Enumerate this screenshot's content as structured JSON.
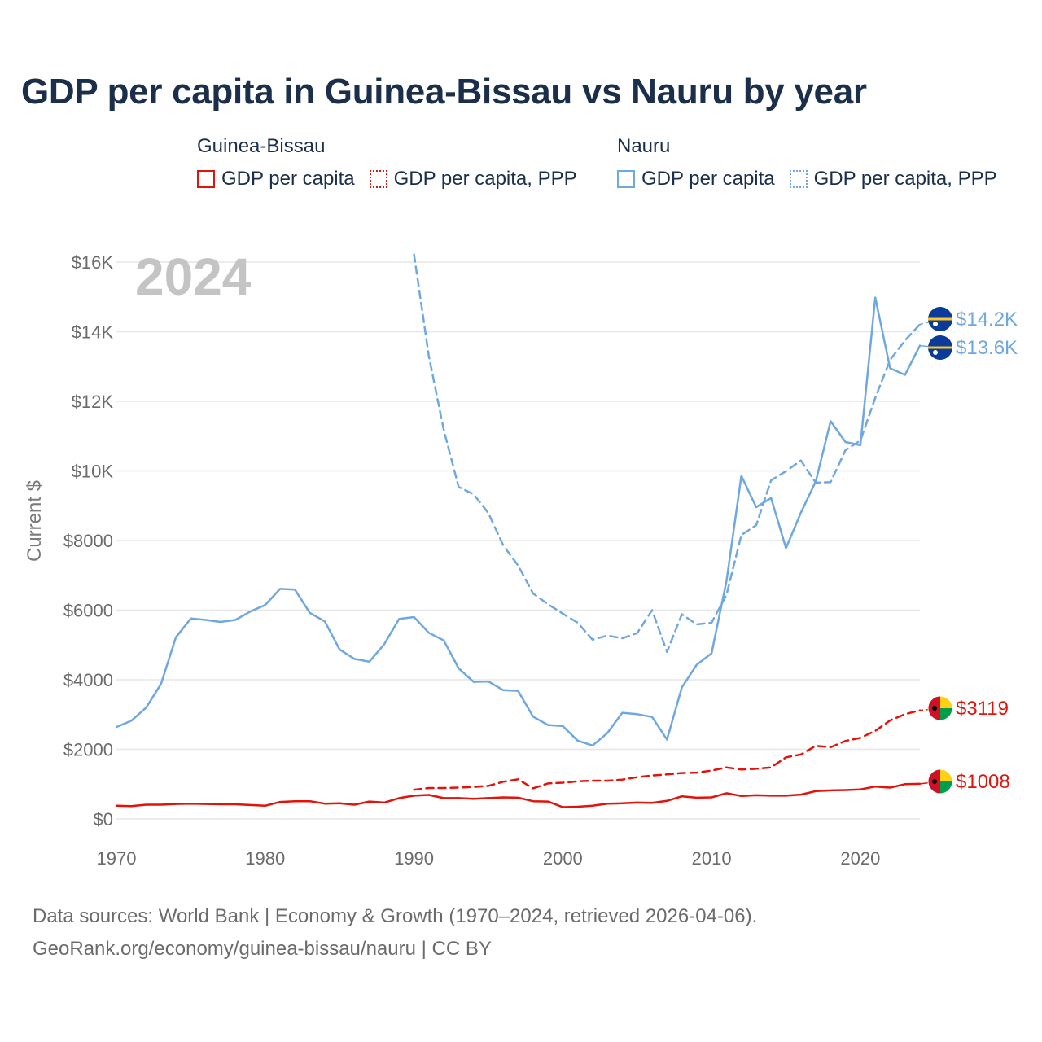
{
  "title": "GDP per capita in Guinea-Bissau vs Nauru by year",
  "legend": {
    "guinea_bissau": {
      "name": "Guinea-Bissau",
      "gdp": "GDP per capita",
      "ppp": "GDP per capita, PPP"
    },
    "nauru": {
      "name": "Nauru",
      "gdp": "GDP per capita",
      "ppp": "GDP per capita, PPP"
    }
  },
  "footer": {
    "line1": "Data sources: World Bank | Economy & Growth (1970–2024, retrieved 2026-04-06).",
    "line2": "GeoRank.org/economy/guinea-bissau/nauru | CC BY"
  },
  "chart_data": {
    "type": "line",
    "title": "GDP per capita in Guinea-Bissau vs Nauru by year",
    "year_label": "2024",
    "ylabel": "Current $",
    "xlabel": "",
    "xlim": [
      1970,
      2024
    ],
    "ylim": [
      0,
      16000
    ],
    "grid": true,
    "x_ticks": [
      1970,
      1980,
      1990,
      2000,
      2010,
      2020
    ],
    "x_tick_labels": [
      "1970",
      "1980",
      "1990",
      "2000",
      "2010",
      "2020"
    ],
    "y_ticks": [
      0,
      2000,
      4000,
      6000,
      8000,
      10000,
      12000,
      14000,
      16000
    ],
    "y_tick_labels": [
      "$0",
      "$2000",
      "$4000",
      "$6000",
      "$8000",
      "$10K",
      "$12K",
      "$14K",
      "$16K"
    ],
    "colors": {
      "guinea_bissau": "#e3120b",
      "nauru": "#6fa8e0"
    },
    "series": [
      {
        "name": "Nauru GDP per capita",
        "country": "nauru",
        "style": "solid",
        "start_year": 1970,
        "values": [
          2640,
          2820,
          3200,
          3880,
          5220,
          5760,
          5720,
          5660,
          5720,
          5960,
          6150,
          6610,
          6590,
          5920,
          5680,
          4870,
          4600,
          4520,
          5020,
          5750,
          5800,
          5350,
          5130,
          4330,
          3940,
          3950,
          3700,
          3680,
          2940,
          2700,
          2670,
          2250,
          2110,
          2470,
          3050,
          3010,
          2930,
          2280,
          3780,
          4430,
          4760,
          6830,
          9860,
          8960,
          9220,
          7780,
          8800,
          9700,
          11430,
          10830,
          10740,
          14980,
          12950,
          12760,
          13600
        ],
        "end_label": "$13.6K"
      },
      {
        "name": "Nauru GDP per capita, PPP",
        "country": "nauru",
        "style": "dashed",
        "start_year": 1990,
        "values": [
          16220,
          13300,
          11180,
          9540,
          9330,
          8790,
          7860,
          7280,
          6480,
          6170,
          5900,
          5640,
          5150,
          5270,
          5190,
          5340,
          6000,
          4800,
          5880,
          5590,
          5640,
          6440,
          8160,
          8440,
          9730,
          9990,
          10300,
          9660,
          9680,
          10600,
          10870,
          12100,
          13190,
          13750,
          14210
        ],
        "end_label": "$14.2K"
      },
      {
        "name": "Guinea-Bissau GDP per capita",
        "country": "guinea_bissau",
        "style": "solid",
        "start_year": 1970,
        "values": [
          380,
          370,
          410,
          410,
          430,
          440,
          430,
          420,
          420,
          400,
          380,
          490,
          510,
          510,
          440,
          450,
          410,
          500,
          470,
          600,
          670,
          690,
          600,
          600,
          580,
          600,
          620,
          610,
          510,
          500,
          340,
          350,
          380,
          440,
          450,
          470,
          460,
          520,
          650,
          610,
          620,
          740,
          660,
          680,
          670,
          670,
          700,
          800,
          820,
          830,
          850,
          930,
          900,
          1000,
          1008
        ],
        "end_label": "$1008"
      },
      {
        "name": "Guinea-Bissau GDP per capita, PPP",
        "country": "guinea_bissau",
        "style": "dashed",
        "start_year": 1990,
        "values": [
          840,
          890,
          890,
          900,
          920,
          950,
          1070,
          1140,
          880,
          1020,
          1040,
          1080,
          1100,
          1100,
          1130,
          1200,
          1250,
          1280,
          1320,
          1330,
          1390,
          1480,
          1420,
          1440,
          1480,
          1770,
          1850,
          2100,
          2060,
          2240,
          2330,
          2530,
          2830,
          3010,
          3119
        ],
        "end_label": "$3119"
      }
    ]
  }
}
